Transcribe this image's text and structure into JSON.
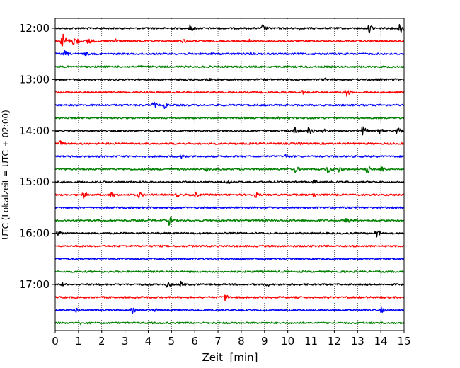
{
  "chart_data": {
    "type": "line",
    "xlabel": "Zeit  [min]",
    "ylabel": "UTC (Lokalzeit = UTC + 02:00)",
    "xlim": [
      0,
      15
    ],
    "x_ticks": [
      0,
      1,
      2,
      3,
      4,
      5,
      6,
      7,
      8,
      9,
      10,
      11,
      12,
      13,
      14,
      15
    ],
    "x_tick_labels": [
      "0",
      "1",
      "2",
      "3",
      "4",
      "5",
      "6",
      "7",
      "8",
      "9",
      "10",
      "11",
      "12",
      "13",
      "14",
      "15"
    ],
    "y_ticks": [
      "12:00",
      "13:00",
      "14:00",
      "15:00",
      "16:00",
      "17:00"
    ],
    "grid": "vertical dotted",
    "colors": [
      "#000000",
      "#ff0000",
      "#0000ff",
      "#008000"
    ],
    "row_interval_minutes": 15,
    "rows": [
      {
        "time": "12:00",
        "color": "#000000",
        "events": [
          [
            5.8,
            6
          ],
          [
            8.9,
            6
          ],
          [
            10.5,
            3
          ],
          [
            13.5,
            7
          ],
          [
            14.8,
            9
          ]
        ]
      },
      {
        "time": "12:15",
        "color": "#ff0000",
        "events": [
          [
            0.3,
            14
          ],
          [
            0.8,
            10
          ],
          [
            1.4,
            8
          ],
          [
            2.6,
            6
          ],
          [
            5.5,
            4
          ],
          [
            8.3,
            4
          ]
        ]
      },
      {
        "time": "12:30",
        "color": "#0000ff",
        "events": [
          [
            0.4,
            5
          ],
          [
            1.3,
            4
          ],
          [
            6.7,
            3
          ],
          [
            8.4,
            3
          ]
        ]
      },
      {
        "time": "12:45",
        "color": "#008000",
        "events": [
          [
            3.6,
            3
          ],
          [
            10.8,
            2
          ]
        ]
      },
      {
        "time": "13:00",
        "color": "#000000",
        "events": [
          [
            6.6,
            3
          ],
          [
            8.3,
            3
          ],
          [
            11.6,
            3
          ]
        ]
      },
      {
        "time": "13:15",
        "color": "#ff0000",
        "events": [
          [
            10.6,
            4
          ],
          [
            12.5,
            7
          ]
        ]
      },
      {
        "time": "13:30",
        "color": "#0000ff",
        "events": [
          [
            4.2,
            6
          ],
          [
            4.7,
            5
          ]
        ]
      },
      {
        "time": "13:45",
        "color": "#008000",
        "events": [
          [
            9.6,
            2
          ]
        ]
      },
      {
        "time": "14:00",
        "color": "#000000",
        "events": [
          [
            10.3,
            7
          ],
          [
            10.9,
            7
          ],
          [
            11.5,
            5
          ],
          [
            13.2,
            8
          ],
          [
            13.9,
            6
          ],
          [
            14.7,
            6
          ]
        ]
      },
      {
        "time": "14:15",
        "color": "#ff0000",
        "events": [
          [
            0.2,
            5
          ],
          [
            10.5,
            3
          ]
        ]
      },
      {
        "time": "14:30",
        "color": "#0000ff",
        "events": [
          [
            5.4,
            7
          ],
          [
            9.9,
            4
          ]
        ]
      },
      {
        "time": "14:45",
        "color": "#008000",
        "events": [
          [
            6.5,
            3
          ],
          [
            10.3,
            6
          ],
          [
            11.7,
            7
          ],
          [
            12.2,
            5
          ],
          [
            13.4,
            8
          ],
          [
            14.0,
            6
          ]
        ]
      },
      {
        "time": "15:00",
        "color": "#000000",
        "events": [
          [
            0.2,
            3
          ],
          [
            7.4,
            4
          ],
          [
            11.1,
            4
          ]
        ]
      },
      {
        "time": "15:15",
        "color": "#ff0000",
        "events": [
          [
            1.2,
            6
          ],
          [
            2.4,
            5
          ],
          [
            3.6,
            5
          ],
          [
            5.2,
            4
          ],
          [
            6.0,
            5
          ],
          [
            8.6,
            5
          ],
          [
            11.1,
            4
          ]
        ]
      },
      {
        "time": "15:30",
        "color": "#0000ff",
        "events": [
          [
            9.2,
            2
          ]
        ]
      },
      {
        "time": "15:45",
        "color": "#008000",
        "events": [
          [
            4.9,
            8
          ],
          [
            12.5,
            6
          ]
        ]
      },
      {
        "time": "16:00",
        "color": "#000000",
        "events": [
          [
            0.1,
            5
          ],
          [
            13.8,
            8
          ]
        ]
      },
      {
        "time": "16:15",
        "color": "#ff0000",
        "events": []
      },
      {
        "time": "16:30",
        "color": "#0000ff",
        "events": []
      },
      {
        "time": "16:45",
        "color": "#008000",
        "events": []
      },
      {
        "time": "17:00",
        "color": "#000000",
        "events": [
          [
            0.3,
            4
          ],
          [
            4.8,
            5
          ],
          [
            5.4,
            5
          ],
          [
            9.1,
            4
          ]
        ]
      },
      {
        "time": "17:15",
        "color": "#ff0000",
        "events": [
          [
            7.3,
            6
          ],
          [
            14.0,
            2
          ]
        ]
      },
      {
        "time": "17:30",
        "color": "#0000ff",
        "events": [
          [
            0.9,
            4
          ],
          [
            3.3,
            5
          ],
          [
            4.3,
            4
          ],
          [
            14.0,
            5
          ]
        ]
      },
      {
        "time": "17:45",
        "color": "#008000",
        "events": [
          [
            1.1,
            3
          ]
        ]
      }
    ]
  }
}
